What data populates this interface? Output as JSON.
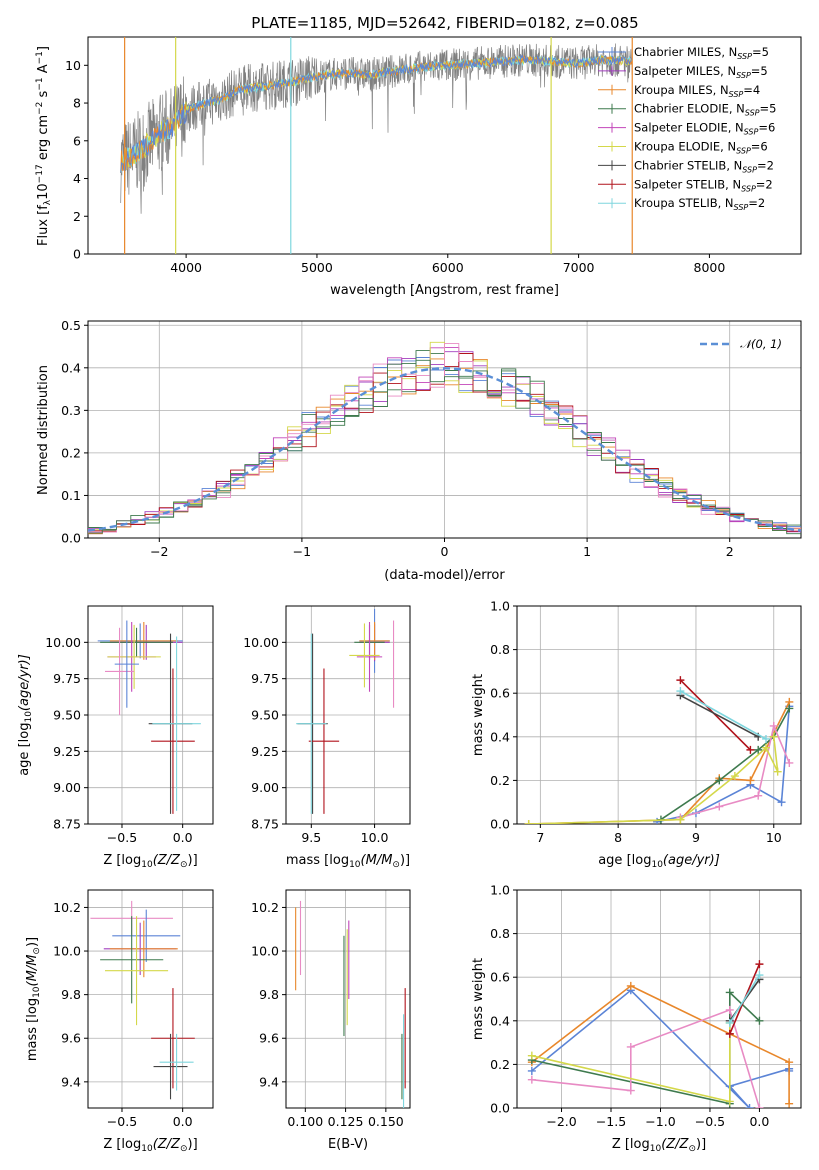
{
  "page_title": "PLATE=1185, MJD=52642, FIBERID=0182, z=0.085",
  "colors": {
    "s0": "#5b84d6",
    "s1": "#a23fbf",
    "s2": "#e8872b",
    "s3": "#3e7a4e",
    "s4": "#c245b9",
    "s5": "#d4d84a",
    "s6": "#444444",
    "s7": "#b0121b",
    "s8": "#7fd6de",
    "data_gray": "#808080",
    "normal": "#5b8fd6",
    "pink": "#e88bc4"
  },
  "chart_data": [
    {
      "id": "spectrum",
      "type": "line",
      "title": "PLATE=1185, MJD=52642, FIBERID=0182, z=0.085",
      "xlabel": "wavelength [Angstrom, rest frame]",
      "ylabel": "Flux [f",
      "ylabel_sub": "λ",
      "ylabel_rest": "10",
      "ylabel_sup": "−17",
      "ylabel_tail": " erg cm",
      "ylabel_sup2": "−2",
      "ylabel_tail2": " s",
      "ylabel_sup3": "−1",
      "ylabel_tail3": " A",
      "ylabel_sup4": "−1",
      "ylabel_end": "]",
      "xlim": [
        3250,
        8700
      ],
      "ylim": [
        0,
        11.5
      ],
      "xticks": [
        "4000",
        "5000",
        "6000",
        "7000",
        "8000"
      ],
      "xtick_values": [
        4000,
        5000,
        6000,
        7000,
        8000
      ],
      "yticks": [
        "0",
        "2",
        "4",
        "6",
        "8",
        "10"
      ],
      "ytick_values": [
        0,
        2,
        4,
        6,
        8,
        10
      ],
      "legend": [
        {
          "pre": "Chabrier MILES, N",
          "sub": "SSP",
          "post": "=5"
        },
        {
          "pre": "Salpeter MILES, N",
          "sub": "SSP",
          "post": "=5"
        },
        {
          "pre": "Kroupa MILES, N",
          "sub": "SSP",
          "post": "=4"
        },
        {
          "pre": "Chabrier ELODIE, N",
          "sub": "SSP",
          "post": "=5"
        },
        {
          "pre": "Salpeter ELODIE, N",
          "sub": "SSP",
          "post": "=6"
        },
        {
          "pre": "Kroupa ELODIE, N",
          "sub": "SSP",
          "post": "=6"
        },
        {
          "pre": "Chabrier STELIB, N",
          "sub": "SSP",
          "post": "=2"
        },
        {
          "pre": "Salpeter STELIB, N",
          "sub": "SSP",
          "post": "=2"
        },
        {
          "pre": "Kroupa STELIB, N",
          "sub": "SSP",
          "post": "=2"
        }
      ],
      "legend_placement": "upper-right",
      "continuum_x": [
        3500,
        3600,
        3700,
        3800,
        3900,
        4000,
        4100,
        4200,
        4300,
        4400,
        4600,
        4800,
        5000,
        5200,
        5400,
        5600,
        5800,
        6000,
        6200,
        6400,
        6600,
        6800,
        7000,
        7200,
        7400
      ],
      "continuum_y": [
        4.9,
        5.2,
        5.8,
        6.4,
        6.8,
        7.6,
        7.9,
        8.1,
        8.3,
        8.7,
        8.9,
        9.1,
        9.4,
        9.6,
        9.5,
        9.7,
        9.9,
        10.0,
        10.1,
        10.2,
        10.3,
        10.2,
        10.1,
        10.3,
        10.2
      ],
      "drops": [
        {
          "x": 3530,
          "color_key": "s2"
        },
        {
          "x": 3920,
          "color_key": "s5"
        },
        {
          "x": 4800,
          "color_key": "s8"
        },
        {
          "x": 6790,
          "color_key": "s5"
        },
        {
          "x": 7410,
          "color_key": "s2"
        }
      ]
    },
    {
      "id": "residuals",
      "type": "histogram",
      "xlabel": "(data-model)/error",
      "ylabel": "Normed distribution",
      "xlim": [
        -2.5,
        2.5
      ],
      "ylim": [
        0,
        0.51
      ],
      "grid": true,
      "xticks": [
        "−2",
        "−1",
        "0",
        "1",
        "2"
      ],
      "xtick_values": [
        -2,
        -1,
        0,
        1,
        2
      ],
      "yticks": [
        "0.0",
        "0.1",
        "0.2",
        "0.3",
        "0.4",
        "0.5"
      ],
      "ytick_values": [
        0,
        0.1,
        0.2,
        0.3,
        0.4,
        0.5
      ],
      "legend": "𝒩(0, 1)",
      "legend_placement": "upper-right",
      "bin_width": 0.1,
      "bin_start": -2.5,
      "series_count": 9
    },
    {
      "id": "age_vs_Z",
      "type": "errorbar",
      "xlabel": "Z [log",
      "xlabel_sub": "10",
      "xlabel_tail": "(Z/Z",
      "xlabel_sub2": "⊙",
      "xlabel_end": ")]",
      "ylabel": "age  [log",
      "ylabel_sub": "10",
      "ylabel_tail": "(age/yr)]",
      "xlim": [
        -0.78,
        0.25
      ],
      "ylim": [
        8.75,
        10.25
      ],
      "grid": true,
      "xticks": [
        "−0.5",
        "0.0"
      ],
      "xtick_values": [
        -0.5,
        0.0
      ],
      "yticks": [
        "8.75",
        "9.00",
        "9.25",
        "9.50",
        "9.75",
        "10.00"
      ],
      "ytick_values": [
        8.75,
        9.0,
        9.25,
        9.5,
        9.75,
        10.0
      ],
      "points": [
        {
          "x": -0.35,
          "xerr": 0.35,
          "y": 10.01,
          "yerr": 0.12,
          "color_key": "s0"
        },
        {
          "x": -0.3,
          "xerr": 0.3,
          "y": 10.0,
          "yerr": 0.12,
          "color_key": "s1"
        },
        {
          "x": -0.32,
          "xerr": 0.28,
          "y": 10.01,
          "yerr": 0.13,
          "color_key": "s2"
        },
        {
          "x": -0.38,
          "xerr": 0.3,
          "y": 10.0,
          "yerr": 0.1,
          "color_key": "s3"
        },
        {
          "x": -0.42,
          "xerr": 0.2,
          "y": 9.9,
          "yerr": 0.24,
          "color_key": "s4"
        },
        {
          "x": -0.4,
          "xerr": 0.22,
          "y": 9.9,
          "yerr": 0.22,
          "color_key": "s5"
        },
        {
          "x": -0.1,
          "xerr": 0.18,
          "y": 9.44,
          "yerr": 0.62,
          "color_key": "s6"
        },
        {
          "x": -0.08,
          "xerr": 0.18,
          "y": 9.32,
          "yerr": 0.5,
          "color_key": "s7"
        },
        {
          "x": -0.05,
          "xerr": 0.2,
          "y": 9.44,
          "yerr": 0.6,
          "color_key": "s8"
        },
        {
          "x": -0.52,
          "xerr": 0.12,
          "y": 9.8,
          "yerr": 0.3,
          "color_key": "pink"
        },
        {
          "x": -0.46,
          "xerr": 0.1,
          "y": 9.85,
          "yerr": 0.3,
          "color_key": "s0"
        }
      ]
    },
    {
      "id": "age_vs_mass",
      "type": "errorbar",
      "xlabel": "mass [log",
      "xlabel_sub": "10",
      "xlabel_tail": "(M/M",
      "xlabel_sub2": "⊙",
      "xlabel_end": ")]",
      "xlim": [
        9.3,
        10.28
      ],
      "ylim": [
        8.75,
        10.25
      ],
      "grid": true,
      "xticks": [
        "9.5",
        "10.0"
      ],
      "xtick_values": [
        9.5,
        10.0
      ],
      "yticks": [
        "8.75",
        "9.00",
        "9.25",
        "9.50",
        "9.75",
        "10.00"
      ],
      "ytick_values": [
        8.75,
        9.0,
        9.25,
        9.5,
        9.75,
        10.0
      ],
      "points": [
        {
          "x": 10.0,
          "xerr": 0.12,
          "y": 10.01,
          "yerr": 0.22,
          "color_key": "s0"
        },
        {
          "x": 10.0,
          "xerr": 0.12,
          "y": 10.0,
          "yerr": 0.13,
          "color_key": "s1"
        },
        {
          "x": 10.0,
          "xerr": 0.12,
          "y": 10.01,
          "yerr": 0.13,
          "color_key": "s2"
        },
        {
          "x": 9.96,
          "xerr": 0.12,
          "y": 10.0,
          "yerr": 0.12,
          "color_key": "s3"
        },
        {
          "x": 9.96,
          "xerr": 0.1,
          "y": 9.9,
          "yerr": 0.24,
          "color_key": "s4"
        },
        {
          "x": 9.92,
          "xerr": 0.12,
          "y": 9.91,
          "yerr": 0.22,
          "color_key": "s5"
        },
        {
          "x": 9.51,
          "xerr": 0.12,
          "y": 9.44,
          "yerr": 0.62,
          "color_key": "s6"
        },
        {
          "x": 9.6,
          "xerr": 0.12,
          "y": 9.32,
          "yerr": 0.5,
          "color_key": "s7"
        },
        {
          "x": 9.5,
          "xerr": 0.12,
          "y": 9.44,
          "yerr": 0.62,
          "color_key": "s8"
        },
        {
          "x": 10.15,
          "xerr": 0.0,
          "y": 9.85,
          "yerr": 0.3,
          "color_key": "pink"
        }
      ]
    },
    {
      "id": "massweight_vs_age",
      "type": "line",
      "xlabel": "age  [log",
      "xlabel_sub": "10",
      "xlabel_tail": "(age/yr)]",
      "ylabel": "mass weight",
      "xlim": [
        6.7,
        10.35
      ],
      "ylim": [
        0,
        1.0
      ],
      "grid": true,
      "xticks": [
        "7",
        "8",
        "9",
        "10"
      ],
      "xtick_values": [
        7,
        8,
        9,
        10
      ],
      "yticks": [
        "0.0",
        "0.2",
        "0.4",
        "0.6",
        "0.8",
        "1.0"
      ],
      "ytick_values": [
        0,
        0.2,
        0.4,
        0.6,
        0.8,
        1.0
      ],
      "series": [
        {
          "color_key": "s0",
          "x": [
            8.5,
            9.0,
            9.7,
            10.1,
            10.2
          ],
          "y": [
            0.01,
            0.05,
            0.18,
            0.1,
            0.54
          ]
        },
        {
          "color_key": "s2",
          "x": [
            6.85,
            8.8,
            9.3,
            9.7,
            10.2
          ],
          "y": [
            0.0,
            0.02,
            0.21,
            0.2,
            0.56
          ]
        },
        {
          "color_key": "s3",
          "x": [
            8.55,
            9.3,
            9.8,
            10.0,
            10.2
          ],
          "y": [
            0.02,
            0.2,
            0.34,
            0.4,
            0.53
          ]
        },
        {
          "color_key": "pink",
          "x": [
            8.8,
            9.3,
            9.8,
            10.0,
            10.2
          ],
          "y": [
            0.03,
            0.08,
            0.13,
            0.45,
            0.28
          ]
        },
        {
          "color_key": "s5",
          "x": [
            6.85,
            8.8,
            9.5,
            9.9,
            10.05,
            10.0
          ],
          "y": [
            0.0,
            0.02,
            0.22,
            0.35,
            0.24,
            0.4
          ]
        },
        {
          "color_key": "s7",
          "x": [
            8.8,
            9.7
          ],
          "y": [
            0.66,
            0.34
          ]
        },
        {
          "color_key": "s6",
          "x": [
            8.8,
            9.8
          ],
          "y": [
            0.59,
            0.4
          ]
        },
        {
          "color_key": "s8",
          "x": [
            8.8,
            9.9
          ],
          "y": [
            0.61,
            0.39
          ]
        }
      ]
    },
    {
      "id": "mass_vs_Z",
      "type": "errorbar",
      "xlabel": "Z [log",
      "xlabel_sub": "10",
      "xlabel_tail": "(Z/Z",
      "xlabel_sub2": "⊙",
      "xlabel_end": ")]",
      "ylabel": "mass [log",
      "ylabel_sub": "10",
      "ylabel_tail": "(M/M",
      "ylabel_sub2": "⊙",
      "ylabel_end": ")]",
      "xlim": [
        -0.78,
        0.25
      ],
      "ylim": [
        9.28,
        10.28
      ],
      "grid": true,
      "xticks": [
        "−0.5",
        "0.0"
      ],
      "xtick_values": [
        -0.5,
        0.0
      ],
      "yticks": [
        "9.4",
        "9.6",
        "9.8",
        "10.0",
        "10.2"
      ],
      "ytick_values": [
        9.4,
        9.6,
        9.8,
        10.0,
        10.2
      ],
      "points": [
        {
          "x": -0.42,
          "xerr": 0.34,
          "y": 10.15,
          "yerr": 0.08,
          "color_key": "pink"
        },
        {
          "x": -0.3,
          "xerr": 0.28,
          "y": 10.07,
          "yerr": 0.12,
          "color_key": "s0"
        },
        {
          "x": -0.35,
          "xerr": 0.3,
          "y": 10.01,
          "yerr": 0.12,
          "color_key": "s1"
        },
        {
          "x": -0.32,
          "xerr": 0.28,
          "y": 10.01,
          "yerr": 0.13,
          "color_key": "s2"
        },
        {
          "x": -0.42,
          "xerr": 0.26,
          "y": 9.96,
          "yerr": 0.2,
          "color_key": "s3"
        },
        {
          "x": -0.38,
          "xerr": 0.26,
          "y": 9.91,
          "yerr": 0.25,
          "color_key": "s5"
        },
        {
          "x": -0.08,
          "xerr": 0.18,
          "y": 9.6,
          "yerr": 0.23,
          "color_key": "s7"
        },
        {
          "x": -0.1,
          "xerr": 0.14,
          "y": 9.47,
          "yerr": 0.15,
          "color_key": "s6"
        },
        {
          "x": -0.05,
          "xerr": 0.14,
          "y": 9.49,
          "yerr": 0.13,
          "color_key": "s8"
        }
      ]
    },
    {
      "id": "mass_vs_ebv",
      "type": "errorbar",
      "xlabel": "E(B-V)",
      "xlim": [
        0.088,
        0.165
      ],
      "ylim": [
        9.28,
        10.28
      ],
      "grid": true,
      "xticks": [
        "0.100",
        "0.125",
        "0.150"
      ],
      "xtick_values": [
        0.1,
        0.125,
        0.15
      ],
      "yticks": [
        "9.4",
        "9.6",
        "9.8",
        "10.0",
        "10.2"
      ],
      "ytick_values": [
        9.4,
        9.6,
        9.8,
        10.0,
        10.2
      ],
      "points": [
        {
          "x": 0.094,
          "xerr": 0,
          "y": 10.01,
          "yerr": 0.19,
          "color_key": "s2"
        },
        {
          "x": 0.097,
          "xerr": 0,
          "y": 10.06,
          "yerr": 0.17,
          "color_key": "pink"
        },
        {
          "x": 0.124,
          "xerr": 0,
          "y": 9.84,
          "yerr": 0.23,
          "color_key": "s3"
        },
        {
          "x": 0.126,
          "xerr": 0,
          "y": 9.88,
          "yerr": 0.22,
          "color_key": "s5"
        },
        {
          "x": 0.127,
          "xerr": 0,
          "y": 9.96,
          "yerr": 0.18,
          "color_key": "s4"
        },
        {
          "x": 0.162,
          "xerr": 0,
          "y": 9.6,
          "yerr": 0.23,
          "color_key": "s7"
        },
        {
          "x": 0.161,
          "xerr": 0,
          "y": 9.49,
          "yerr": 0.22,
          "color_key": "s8"
        },
        {
          "x": 0.16,
          "xerr": 0,
          "y": 9.47,
          "yerr": 0.15,
          "color_key": "s3"
        }
      ]
    },
    {
      "id": "massweight_vs_Z",
      "type": "line",
      "xlabel": "Z [log",
      "xlabel_sub": "10",
      "xlabel_tail": "(Z/Z",
      "xlabel_sub2": "⊙",
      "xlabel_end": ")]",
      "ylabel": "mass weight",
      "xlim": [
        -2.45,
        0.42
      ],
      "ylim": [
        0,
        1.0
      ],
      "grid": true,
      "xticks": [
        "−2.0",
        "−1.5",
        "−1.0",
        "−0.5",
        "0.0"
      ],
      "xtick_values": [
        -2.0,
        -1.5,
        -1.0,
        -0.5,
        0.0
      ],
      "yticks": [
        "0.0",
        "0.2",
        "0.4",
        "0.6",
        "0.8",
        "1.0"
      ],
      "ytick_values": [
        0,
        0.2,
        0.4,
        0.6,
        0.8,
        1.0
      ],
      "series": [
        {
          "color_key": "s0",
          "x": [
            -2.3,
            -1.3,
            -0.1,
            -0.3,
            0.3,
            0.3
          ],
          "y": [
            0.17,
            0.54,
            0.0,
            0.1,
            0.18,
            0.17
          ]
        },
        {
          "color_key": "s2",
          "x": [
            -2.3,
            -1.3,
            -0.3,
            0.3,
            0.3
          ],
          "y": [
            0.21,
            0.56,
            0.34,
            0.21,
            0.02
          ]
        },
        {
          "color_key": "s3",
          "x": [
            -2.3,
            -0.3,
            -0.3,
            0.0
          ],
          "y": [
            0.22,
            0.02,
            0.53,
            0.4
          ]
        },
        {
          "color_key": "pink",
          "x": [
            -2.3,
            -1.3,
            -1.3,
            -0.3,
            0.0
          ],
          "y": [
            0.13,
            0.08,
            0.28,
            0.45,
            0.0
          ]
        },
        {
          "color_key": "s5",
          "x": [
            -2.3,
            -0.3,
            -0.3
          ],
          "y": [
            0.24,
            0.03,
            0.39
          ]
        },
        {
          "color_key": "s7",
          "x": [
            -0.3,
            0.0
          ],
          "y": [
            0.34,
            0.66
          ]
        },
        {
          "color_key": "s6",
          "x": [
            -0.3,
            0.0
          ],
          "y": [
            0.4,
            0.59
          ]
        },
        {
          "color_key": "s8",
          "x": [
            -0.3,
            0.0
          ],
          "y": [
            0.39,
            0.61
          ]
        }
      ]
    }
  ]
}
